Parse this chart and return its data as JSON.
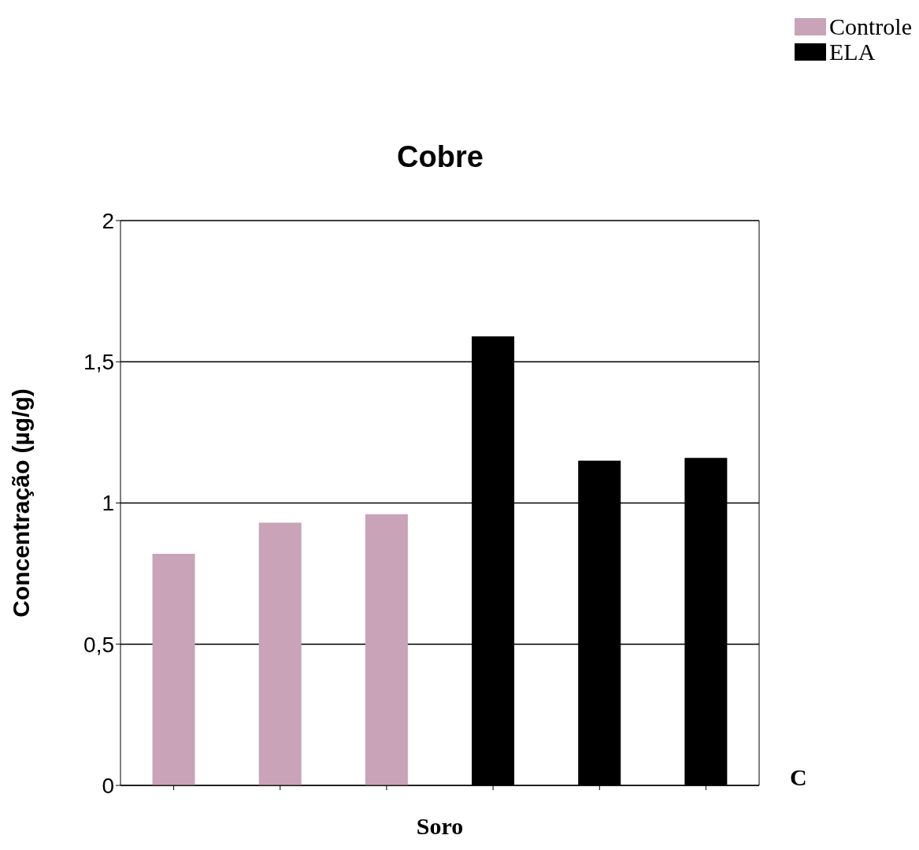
{
  "chart_data": {
    "type": "bar",
    "title": "Cobre",
    "xlabel": "Soro",
    "ylabel": "Concentração (µg/g)",
    "categories": [
      null,
      null,
      null,
      null,
      null,
      null
    ],
    "series": [
      {
        "name": "Controle",
        "color": "#c9a3b8",
        "values": [
          0.82,
          0.93,
          0.96,
          null,
          null,
          null
        ]
      },
      {
        "name": "ELA",
        "color": "#000000",
        "values": [
          null,
          null,
          null,
          1.59,
          1.15,
          1.16
        ]
      }
    ],
    "ylim": [
      0,
      2
    ],
    "yticks": [
      {
        "value": 0,
        "label": "0"
      },
      {
        "value": 0.5,
        "label": "0,5"
      },
      {
        "value": 1,
        "label": "1"
      },
      {
        "value": 1.5,
        "label": "1,5"
      },
      {
        "value": 2,
        "label": "2"
      }
    ],
    "grid": "y",
    "legend": "top right",
    "annotations": [
      "C"
    ]
  }
}
